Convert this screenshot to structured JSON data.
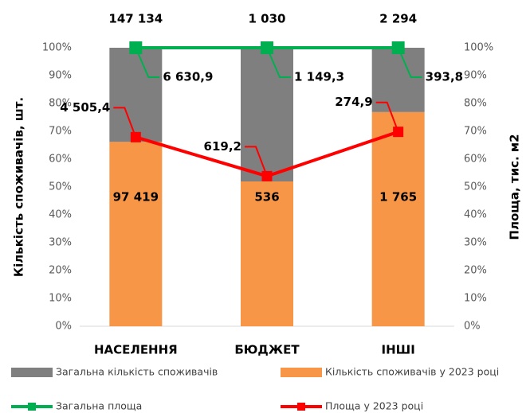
{
  "chart_data": {
    "type": "bar",
    "stacked": true,
    "categories": [
      "НАСЕЛЕННЯ",
      "БЮДЖЕТ",
      "ІНШІ"
    ],
    "ylabel": "Кількість споживачів, шт.",
    "y2label": "Площа, тис. м2",
    "ylim": [
      0,
      100
    ],
    "yticks": [
      {
        "value": 0,
        "label": "0%"
      },
      {
        "value": 10,
        "label": "10%"
      },
      {
        "value": 20,
        "label": "20%"
      },
      {
        "value": 30,
        "label": "30%"
      },
      {
        "value": 40,
        "label": "40%"
      },
      {
        "value": 50,
        "label": "50%"
      },
      {
        "value": 60,
        "label": "60%"
      },
      {
        "value": 70,
        "label": "70%"
      },
      {
        "value": 80,
        "label": "80%"
      },
      {
        "value": 90,
        "label": "90%"
      },
      {
        "value": 100,
        "label": "100%"
      }
    ],
    "y2lim": [
      0,
      100
    ],
    "y2ticks": [
      {
        "value": 0,
        "label": "0%"
      },
      {
        "value": 10,
        "label": "10%"
      },
      {
        "value": 20,
        "label": "20%"
      },
      {
        "value": 30,
        "label": "30%"
      },
      {
        "value": 40,
        "label": "40%"
      },
      {
        "value": 50,
        "label": "50%"
      },
      {
        "value": 60,
        "label": "60%"
      },
      {
        "value": 70,
        "label": "70%"
      },
      {
        "value": 80,
        "label": "80%"
      },
      {
        "value": 90,
        "label": "90%"
      },
      {
        "value": 100,
        "label": "100%"
      }
    ],
    "series": [
      {
        "name": "Загальна кількість споживачів",
        "type": "bar",
        "color": "#7f7f7f",
        "values": [
          33.8,
          48.0,
          23.1
        ],
        "data_labels": [
          "147 134",
          "1 030",
          "2 294"
        ]
      },
      {
        "name": "Кількість споживачів у 2023 році",
        "type": "bar",
        "color": "#f79646",
        "values": [
          66.2,
          52.0,
          76.9
        ],
        "data_labels": [
          "97 419",
          "536",
          "1 765"
        ]
      },
      {
        "name": "Загальна площа",
        "type": "line",
        "axis": "y2",
        "color": "#00b050",
        "values": [
          100,
          100,
          100
        ],
        "data_labels": [
          "6 630,9",
          "1 149,3",
          "393,8"
        ]
      },
      {
        "name": "Площа у 2023 році",
        "type": "line",
        "axis": "y2",
        "color": "#ff0000",
        "values": [
          67.9,
          53.9,
          69.8
        ],
        "data_labels": [
          "4 505,4",
          "619,2",
          "274,9"
        ]
      }
    ]
  }
}
